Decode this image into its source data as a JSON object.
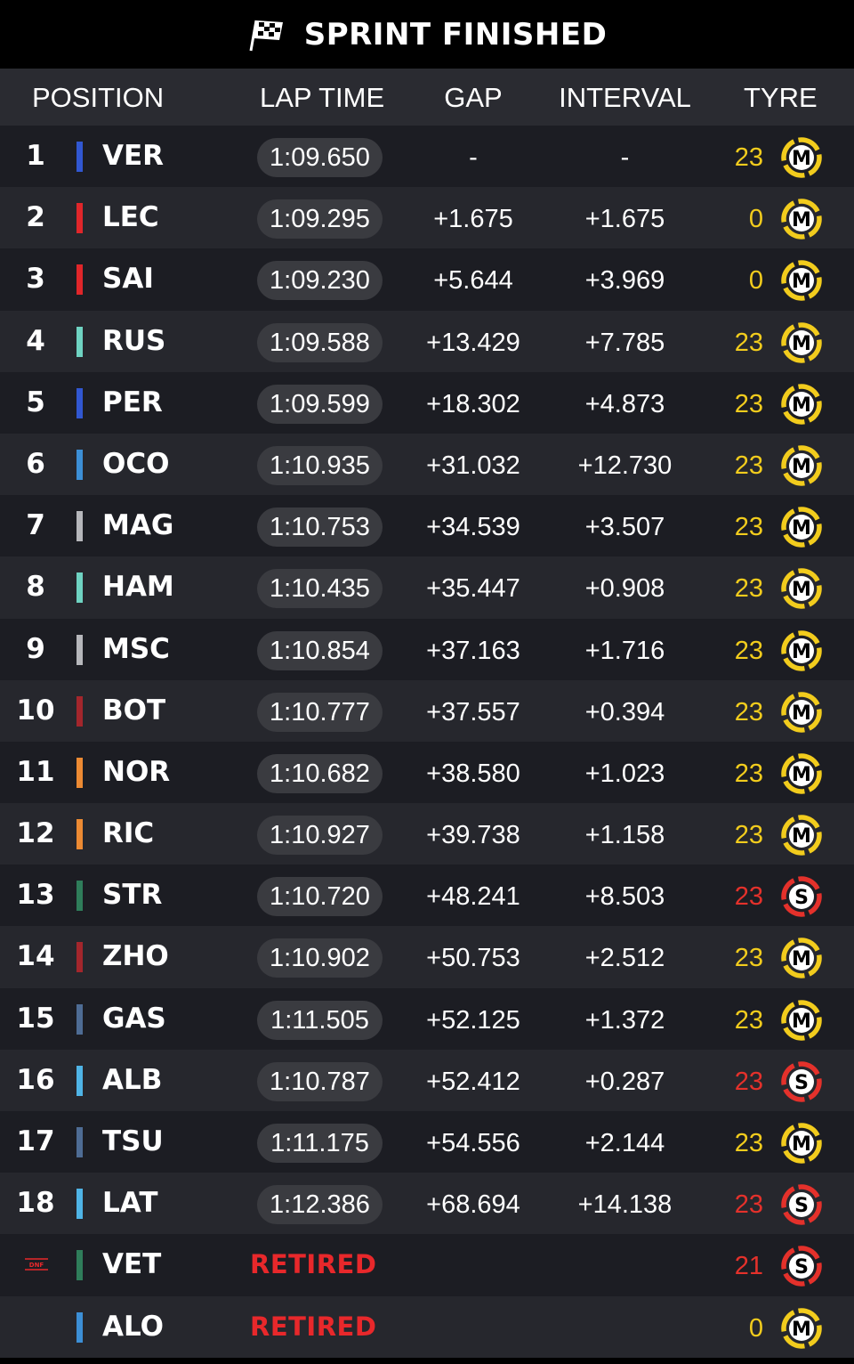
{
  "title": "SPRINT FINISHED",
  "header": {
    "position": "POSITION",
    "lap_time": "LAP TIME",
    "gap": "GAP",
    "interval": "INTERVAL",
    "tyre": "TYRE"
  },
  "colors": {
    "medium": "#f2cc1d",
    "soft": "#e4312b",
    "retired": "#e8282b"
  },
  "rows": [
    {
      "pos": "1",
      "team_color": "#3157d1",
      "driver": "VER",
      "lap": "1:09.650",
      "gap": "-",
      "interval": "-",
      "laps": "23",
      "tyre": "M"
    },
    {
      "pos": "2",
      "team_color": "#e0262a",
      "driver": "LEC",
      "lap": "1:09.295",
      "gap": "+1.675",
      "interval": "+1.675",
      "laps": "0",
      "tyre": "M"
    },
    {
      "pos": "3",
      "team_color": "#e0262a",
      "driver": "SAI",
      "lap": "1:09.230",
      "gap": "+5.644",
      "interval": "+3.969",
      "laps": "0",
      "tyre": "M"
    },
    {
      "pos": "4",
      "team_color": "#6fd3c2",
      "driver": "RUS",
      "lap": "1:09.588",
      "gap": "+13.429",
      "interval": "+7.785",
      "laps": "23",
      "tyre": "M"
    },
    {
      "pos": "5",
      "team_color": "#3157d1",
      "driver": "PER",
      "lap": "1:09.599",
      "gap": "+18.302",
      "interval": "+4.873",
      "laps": "23",
      "tyre": "M"
    },
    {
      "pos": "6",
      "team_color": "#3c8fd6",
      "driver": "OCO",
      "lap": "1:10.935",
      "gap": "+31.032",
      "interval": "+12.730",
      "laps": "23",
      "tyre": "M"
    },
    {
      "pos": "7",
      "team_color": "#b6b7bb",
      "driver": "MAG",
      "lap": "1:10.753",
      "gap": "+34.539",
      "interval": "+3.507",
      "laps": "23",
      "tyre": "M"
    },
    {
      "pos": "8",
      "team_color": "#6fd3c2",
      "driver": "HAM",
      "lap": "1:10.435",
      "gap": "+35.447",
      "interval": "+0.908",
      "laps": "23",
      "tyre": "M"
    },
    {
      "pos": "9",
      "team_color": "#b6b7bb",
      "driver": "MSC",
      "lap": "1:10.854",
      "gap": "+37.163",
      "interval": "+1.716",
      "laps": "23",
      "tyre": "M"
    },
    {
      "pos": "10",
      "team_color": "#a3262c",
      "driver": "BOT",
      "lap": "1:10.777",
      "gap": "+37.557",
      "interval": "+0.394",
      "laps": "23",
      "tyre": "M"
    },
    {
      "pos": "11",
      "team_color": "#ec8a33",
      "driver": "NOR",
      "lap": "1:10.682",
      "gap": "+38.580",
      "interval": "+1.023",
      "laps": "23",
      "tyre": "M"
    },
    {
      "pos": "12",
      "team_color": "#ec8a33",
      "driver": "RIC",
      "lap": "1:10.927",
      "gap": "+39.738",
      "interval": "+1.158",
      "laps": "23",
      "tyre": "M"
    },
    {
      "pos": "13",
      "team_color": "#2f7d5a",
      "driver": "STR",
      "lap": "1:10.720",
      "gap": "+48.241",
      "interval": "+8.503",
      "laps": "23",
      "tyre": "S"
    },
    {
      "pos": "14",
      "team_color": "#a3262c",
      "driver": "ZHO",
      "lap": "1:10.902",
      "gap": "+50.753",
      "interval": "+2.512",
      "laps": "23",
      "tyre": "M"
    },
    {
      "pos": "15",
      "team_color": "#4e6c94",
      "driver": "GAS",
      "lap": "1:11.505",
      "gap": "+52.125",
      "interval": "+1.372",
      "laps": "23",
      "tyre": "M"
    },
    {
      "pos": "16",
      "team_color": "#4fb4e6",
      "driver": "ALB",
      "lap": "1:10.787",
      "gap": "+52.412",
      "interval": "+0.287",
      "laps": "23",
      "tyre": "S"
    },
    {
      "pos": "17",
      "team_color": "#4e6c94",
      "driver": "TSU",
      "lap": "1:11.175",
      "gap": "+54.556",
      "interval": "+2.144",
      "laps": "23",
      "tyre": "M"
    },
    {
      "pos": "18",
      "team_color": "#4fb4e6",
      "driver": "LAT",
      "lap": "1:12.386",
      "gap": "+68.694",
      "interval": "+14.138",
      "laps": "23",
      "tyre": "S"
    },
    {
      "pos": "DNF",
      "team_color": "#2f7d5a",
      "driver": "VET",
      "status": "RETIRED",
      "laps": "21",
      "tyre": "S"
    },
    {
      "pos": "",
      "team_color": "#3c8fd6",
      "driver": "ALO",
      "status": "RETIRED",
      "laps": "0",
      "tyre": "M"
    }
  ]
}
